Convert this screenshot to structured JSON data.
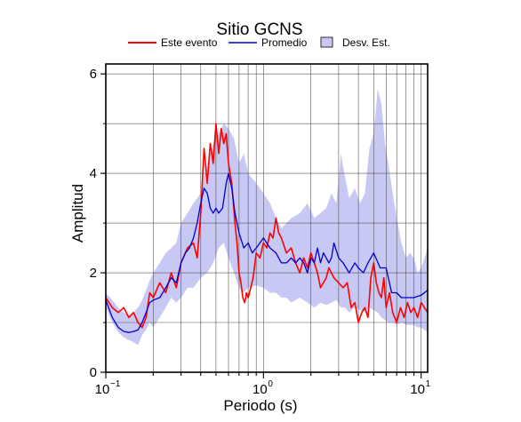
{
  "chart_data": {
    "type": "line",
    "title": "Sitio GCNS",
    "xlabel": "Periodo (s)",
    "ylabel": "Amplitud",
    "xscale": "log",
    "xlim": [
      0.1,
      11
    ],
    "ylim": [
      0,
      6.2
    ],
    "y_ticks": [
      0,
      2,
      4,
      6
    ],
    "y_tick_labels": [
      "0",
      "2",
      "4",
      "6"
    ],
    "x_ticks": [
      0.1,
      1,
      10
    ],
    "x_tick_labels": [
      "10",
      "10",
      "10"
    ],
    "x_tick_exponents": [
      "−1",
      "0",
      "1"
    ],
    "grid": true,
    "legend_position": "top",
    "legend": [
      "Este evento",
      "Promedio",
      "Desv. Est."
    ],
    "colors": {
      "event": "#ff0000",
      "mean": "#0000cc",
      "band": "#c8c8f4"
    },
    "series": [
      {
        "name": "Este evento",
        "x": [
          0.1,
          0.11,
          0.12,
          0.13,
          0.14,
          0.15,
          0.16,
          0.17,
          0.18,
          0.19,
          0.2,
          0.22,
          0.24,
          0.26,
          0.28,
          0.3,
          0.33,
          0.36,
          0.38,
          0.4,
          0.42,
          0.44,
          0.46,
          0.48,
          0.5,
          0.52,
          0.54,
          0.56,
          0.58,
          0.6,
          0.63,
          0.66,
          0.68,
          0.7,
          0.72,
          0.74,
          0.76,
          0.78,
          0.8,
          0.83,
          0.86,
          0.9,
          0.95,
          1.0,
          1.05,
          1.1,
          1.15,
          1.2,
          1.25,
          1.3,
          1.4,
          1.5,
          1.6,
          1.7,
          1.8,
          1.9,
          2.0,
          2.1,
          2.2,
          2.3,
          2.4,
          2.5,
          2.6,
          2.8,
          3.0,
          3.2,
          3.4,
          3.6,
          3.8,
          4.0,
          4.2,
          4.4,
          4.6,
          4.8,
          5.0,
          5.2,
          5.4,
          5.6,
          5.8,
          6.0,
          6.3,
          6.6,
          7.0,
          7.4,
          7.8,
          8.2,
          8.6,
          9.0,
          9.5,
          10.0,
          10.5,
          11.0
        ],
        "values": [
          1.5,
          1.3,
          1.2,
          1.3,
          1.1,
          1.2,
          1.0,
          0.9,
          1.1,
          1.6,
          1.5,
          1.8,
          1.6,
          2.0,
          1.7,
          2.2,
          2.5,
          2.6,
          2.3,
          3.2,
          4.5,
          3.8,
          4.6,
          4.2,
          5.0,
          4.4,
          4.9,
          4.6,
          4.8,
          4.2,
          3.8,
          3.0,
          2.6,
          2.0,
          1.8,
          1.5,
          1.4,
          1.6,
          1.5,
          1.7,
          1.9,
          2.4,
          2.3,
          2.6,
          2.5,
          2.8,
          2.7,
          3.1,
          2.8,
          2.7,
          2.4,
          2.5,
          2.2,
          2.0,
          2.3,
          2.1,
          2.4,
          2.2,
          2.0,
          1.7,
          1.8,
          1.9,
          2.1,
          1.9,
          1.8,
          1.7,
          1.8,
          1.3,
          1.4,
          1.0,
          1.2,
          1.3,
          1.1,
          1.9,
          2.2,
          1.8,
          1.6,
          1.5,
          1.9,
          1.3,
          1.6,
          1.2,
          1.0,
          1.3,
          1.1,
          1.4,
          1.2,
          1.3,
          1.1,
          1.4,
          1.3,
          1.2
        ]
      },
      {
        "name": "Promedio",
        "x": [
          0.1,
          0.11,
          0.12,
          0.13,
          0.14,
          0.15,
          0.16,
          0.17,
          0.18,
          0.19,
          0.2,
          0.22,
          0.24,
          0.26,
          0.28,
          0.3,
          0.32,
          0.34,
          0.36,
          0.38,
          0.4,
          0.42,
          0.44,
          0.46,
          0.48,
          0.5,
          0.52,
          0.55,
          0.58,
          0.6,
          0.63,
          0.66,
          0.7,
          0.75,
          0.8,
          0.85,
          0.9,
          1.0,
          1.1,
          1.2,
          1.3,
          1.4,
          1.5,
          1.6,
          1.7,
          1.8,
          1.9,
          2.0,
          2.1,
          2.2,
          2.3,
          2.4,
          2.5,
          2.6,
          2.7,
          2.8,
          3.0,
          3.2,
          3.5,
          3.8,
          4.0,
          4.3,
          4.6,
          5.0,
          5.5,
          6.0,
          6.5,
          7.0,
          7.5,
          8.0,
          9.0,
          10.0,
          11.0
        ],
        "values": [
          1.45,
          1.1,
          0.9,
          0.82,
          0.8,
          0.82,
          0.85,
          1.0,
          1.2,
          1.4,
          1.45,
          1.5,
          1.7,
          1.9,
          1.8,
          2.2,
          2.4,
          2.5,
          2.7,
          3.0,
          3.4,
          3.7,
          3.6,
          3.3,
          3.2,
          3.3,
          3.2,
          3.3,
          3.8,
          4.0,
          3.7,
          3.2,
          2.8,
          2.5,
          2.6,
          2.4,
          2.5,
          2.7,
          2.5,
          2.4,
          2.2,
          2.2,
          2.3,
          2.2,
          2.3,
          2.2,
          2.0,
          2.3,
          2.2,
          2.5,
          2.2,
          2.4,
          2.3,
          2.2,
          2.3,
          2.6,
          2.3,
          2.2,
          2.0,
          2.2,
          2.1,
          2.0,
          2.2,
          2.4,
          2.1,
          2.1,
          1.6,
          1.6,
          1.5,
          1.5,
          1.5,
          1.55,
          1.65
        ]
      }
    ],
    "band": {
      "name": "Desv. Est.",
      "x": [
        0.1,
        0.11,
        0.12,
        0.13,
        0.14,
        0.15,
        0.16,
        0.17,
        0.18,
        0.19,
        0.2,
        0.22,
        0.24,
        0.26,
        0.28,
        0.3,
        0.33,
        0.36,
        0.4,
        0.44,
        0.48,
        0.52,
        0.56,
        0.6,
        0.65,
        0.7,
        0.75,
        0.8,
        0.9,
        1.0,
        1.1,
        1.2,
        1.3,
        1.4,
        1.5,
        1.7,
        1.9,
        2.1,
        2.3,
        2.5,
        2.7,
        2.9,
        3.1,
        3.3,
        3.5,
        3.8,
        4.1,
        4.4,
        4.7,
        5.0,
        5.3,
        5.6,
        5.9,
        6.2,
        6.6,
        7.0,
        7.5,
        8.0,
        8.5,
        9.0,
        9.5,
        10.0,
        10.5,
        11.0
      ],
      "upper": [
        1.6,
        1.45,
        1.3,
        1.2,
        1.15,
        1.2,
        1.3,
        1.45,
        1.65,
        1.85,
        2.0,
        2.2,
        2.4,
        2.5,
        2.6,
        3.0,
        3.2,
        3.4,
        3.6,
        4.2,
        4.6,
        4.8,
        5.0,
        4.9,
        4.7,
        4.2,
        4.4,
        4.0,
        3.8,
        3.6,
        3.4,
        3.1,
        2.9,
        3.0,
        3.1,
        3.2,
        3.4,
        3.1,
        3.2,
        3.3,
        3.6,
        3.4,
        4.4,
        3.9,
        3.5,
        3.7,
        3.4,
        3.6,
        4.5,
        4.8,
        5.7,
        5.4,
        4.6,
        4.2,
        3.6,
        3.1,
        2.6,
        2.3,
        2.4,
        2.3,
        2.0,
        2.1,
        2.3,
        2.5
      ],
      "lower": [
        1.3,
        1.0,
        0.8,
        0.7,
        0.65,
        0.6,
        0.55,
        0.75,
        0.85,
        1.0,
        0.9,
        1.1,
        1.3,
        1.5,
        1.4,
        1.5,
        1.7,
        1.7,
        1.9,
        2.0,
        2.2,
        2.5,
        2.6,
        2.3,
        2.0,
        1.7,
        1.6,
        1.7,
        1.75,
        1.7,
        1.6,
        1.6,
        1.5,
        1.5,
        1.4,
        1.5,
        1.4,
        1.3,
        1.4,
        1.35,
        1.4,
        1.45,
        1.3,
        1.3,
        1.2,
        1.3,
        1.25,
        1.2,
        1.3,
        1.25,
        1.2,
        1.1,
        1.05,
        1.0,
        1.0,
        0.95,
        1.0,
        0.95,
        0.95,
        0.95,
        0.9,
        0.9,
        0.85,
        0.8
      ]
    }
  }
}
